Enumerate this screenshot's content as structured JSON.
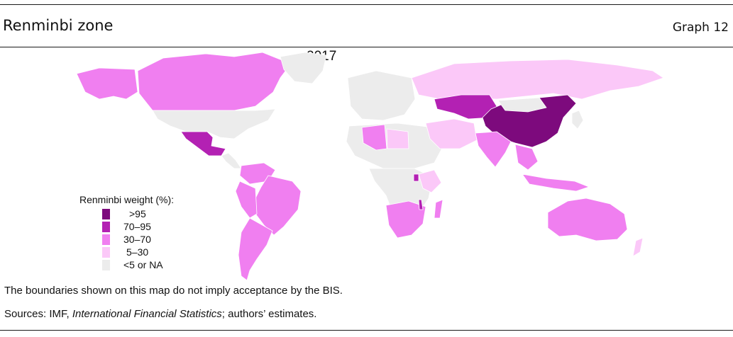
{
  "header": {
    "title": "Renminbi zone",
    "graph_label": "Graph 12"
  },
  "map": {
    "year": "2017",
    "colors": {
      "gt95": "#7d0a7d",
      "70_95": "#b321b3",
      "30_70": "#f07ff0",
      "5_30": "#fbc8f8",
      "na": "#ececec"
    },
    "regions": [
      {
        "name": "China",
        "category": "gt95"
      },
      {
        "name": "Kazakhstan",
        "category": "70_95"
      },
      {
        "name": "Mexico",
        "category": "70_95"
      },
      {
        "name": "Malawi",
        "category": "70_95"
      },
      {
        "name": "Uganda",
        "category": "70_95"
      },
      {
        "name": "Canada",
        "category": "30_70"
      },
      {
        "name": "Russia",
        "category": "5_30"
      },
      {
        "name": "Australia",
        "category": "30_70"
      },
      {
        "name": "Brazil",
        "category": "30_70"
      },
      {
        "name": "Argentina",
        "category": "30_70"
      },
      {
        "name": "India",
        "category": "30_70"
      },
      {
        "name": "South Africa",
        "category": "30_70"
      },
      {
        "name": "Algeria",
        "category": "30_70"
      },
      {
        "name": "Madagascar",
        "category": "30_70"
      },
      {
        "name": "Libya",
        "category": "5_30"
      },
      {
        "name": "United States",
        "category": "na"
      },
      {
        "name": "Greenland",
        "category": "na"
      },
      {
        "name": "Alaska",
        "category": "30_70"
      }
    ]
  },
  "legend": {
    "title": "Renminbi weight (%):",
    "items": [
      {
        "key": "gt95",
        "label": ">95",
        "color": "#7d0a7d"
      },
      {
        "key": "70_95",
        "label": "70–95",
        "color": "#b321b3"
      },
      {
        "key": "30_70",
        "label": "30–70",
        "color": "#f07ff0"
      },
      {
        "key": "5_30",
        "label": "5–30",
        "color": "#fbc8f8"
      },
      {
        "key": "na",
        "label": "<5 or NA",
        "color": "#ececec"
      }
    ]
  },
  "footer": {
    "disclaimer": "The boundaries shown on this map do not imply acceptance by the BIS.",
    "sources_prefix": "Sources: IMF, ",
    "sources_italic": "International Financial Statistics",
    "sources_suffix": "; authors’ estimates."
  }
}
